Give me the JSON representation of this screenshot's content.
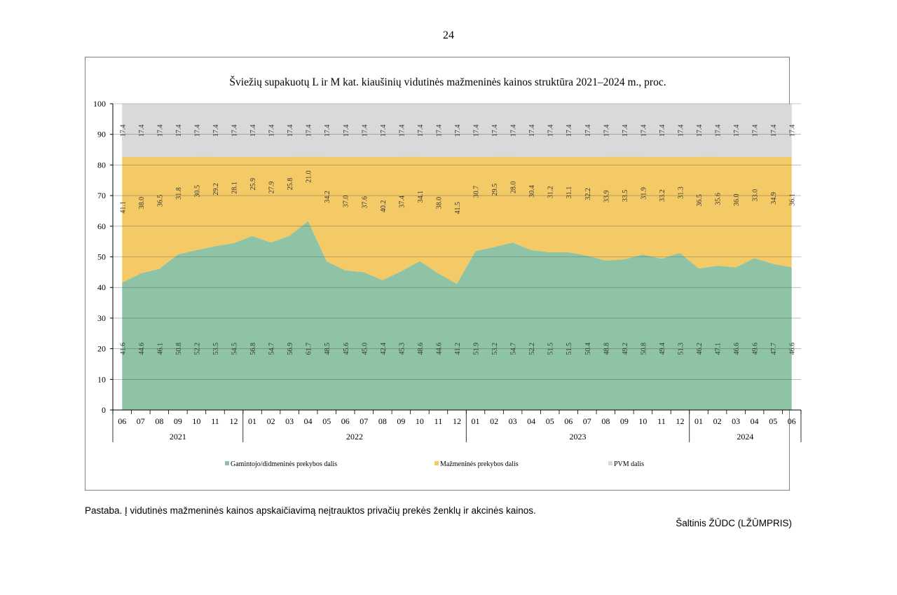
{
  "page_number": "24",
  "note": "Pastaba. Į vidutinės mažmeninės kainos apskaičiavimą neįtrauktos privačių prekės ženklų ir akcinės kainos.",
  "source": "Šaltinis ŽŪDC (LŽŪMPRIS)",
  "chart_data": {
    "type": "area",
    "stacked": true,
    "title": "Šviežių supakuotų L ir M kat. kiaušinių vidutinės mažmeninės kainos struktūra 2021–2024 m., proc.",
    "ylim": [
      0,
      100
    ],
    "y_ticks": [
      "0",
      "10",
      "20",
      "30",
      "40",
      "50",
      "60",
      "70",
      "80",
      "90",
      "100"
    ],
    "categories": [
      "06",
      "07",
      "08",
      "09",
      "10",
      "11",
      "12",
      "01",
      "02",
      "03",
      "04",
      "05",
      "06",
      "07",
      "08",
      "09",
      "10",
      "11",
      "12",
      "01",
      "02",
      "03",
      "04",
      "05",
      "06",
      "07",
      "08",
      "09",
      "10",
      "11",
      "12",
      "01",
      "02",
      "03",
      "04",
      "05",
      "06"
    ],
    "year_groups": [
      {
        "label": "2021",
        "start": 0,
        "end": 6
      },
      {
        "label": "2022",
        "start": 7,
        "end": 18
      },
      {
        "label": "2023",
        "start": 19,
        "end": 30
      },
      {
        "label": "2024",
        "start": 31,
        "end": 36
      }
    ],
    "series": [
      {
        "name": "Gamintojo/didmeninės prekybos dalis",
        "color": "#8fc3a6",
        "values": [
          41.6,
          44.6,
          46.1,
          50.8,
          52.2,
          53.5,
          54.5,
          56.8,
          54.7,
          56.9,
          61.7,
          48.5,
          45.6,
          45.0,
          42.4,
          45.3,
          48.6,
          44.6,
          41.2,
          51.9,
          53.2,
          54.7,
          52.2,
          51.5,
          51.5,
          50.4,
          48.8,
          49.2,
          50.8,
          49.4,
          51.3,
          46.2,
          47.1,
          46.6,
          49.6,
          47.7,
          46.6
        ],
        "labels": [
          "41.6",
          "44.6",
          "46.1",
          "50.8",
          "52.2",
          "53.5",
          "54.5",
          "56.8",
          "54.7",
          "56.9",
          "61.7",
          "48.5",
          "45.6",
          "45.0",
          "42.4",
          "45.3",
          "48.6",
          "44.6",
          "41.2",
          "51.9",
          "53.2",
          "54.7",
          "52.2",
          "51.5",
          "51.5",
          "50.4",
          "48.8",
          "49.2",
          "50.8",
          "49.4",
          "51.3",
          "46.2",
          "47.1",
          "46.6",
          "49.6",
          "47.7",
          "46.6"
        ]
      },
      {
        "name": "Mažmeninės prekybos dalis",
        "color": "#f4ca66",
        "values": [
          41.1,
          38.0,
          36.5,
          31.8,
          30.5,
          29.2,
          28.1,
          25.9,
          27.9,
          25.8,
          21.0,
          34.2,
          37.0,
          37.6,
          40.2,
          37.4,
          34.1,
          38.0,
          41.5,
          30.7,
          29.5,
          28.0,
          30.4,
          31.2,
          31.1,
          32.2,
          33.9,
          33.5,
          31.9,
          33.2,
          31.3,
          36.5,
          35.6,
          36.0,
          33.0,
          34.9,
          36.1
        ],
        "labels": [
          "41.1",
          "38.0",
          "36.5",
          "31.8",
          "30.5",
          "29.2",
          "28.1",
          "25.9",
          "27.9",
          "25.8",
          "21.0",
          "34.2",
          "37.0",
          "37.6",
          "40.2",
          "37.4",
          "34.1",
          "38.0",
          "41.5",
          "30.7",
          "29.5",
          "28.0",
          "30.4",
          "31.2",
          "31.1",
          "32.2",
          "33.9",
          "33.5",
          "31.9",
          "33.2",
          "31.3",
          "36.5",
          "35.6",
          "36.0",
          "33.0",
          "34.9",
          "36.1"
        ]
      },
      {
        "name": "PVM dalis",
        "color": "#d9d9d9",
        "values": [
          17.4,
          17.4,
          17.4,
          17.4,
          17.4,
          17.4,
          17.4,
          17.4,
          17.4,
          17.4,
          17.4,
          17.4,
          17.4,
          17.4,
          17.4,
          17.4,
          17.4,
          17.4,
          17.4,
          17.4,
          17.4,
          17.4,
          17.4,
          17.4,
          17.4,
          17.4,
          17.4,
          17.4,
          17.4,
          17.4,
          17.4,
          17.4,
          17.4,
          17.4,
          17.4,
          17.4,
          17.4
        ],
        "labels": [
          "17.4",
          "17.4",
          "17.4",
          "17.4",
          "17.4",
          "17.4",
          "17.4",
          "17.4",
          "17.4",
          "17.4",
          "17.4",
          "17.4",
          "17.4",
          "17.4",
          "17.4",
          "17.4",
          "17.4",
          "17.4",
          "17.4",
          "17.4",
          "17.4",
          "17.4",
          "17.4",
          "17.4",
          "17.4",
          "17.4",
          "17.4",
          "17.4",
          "17.4",
          "17.4",
          "17.4",
          "17.4",
          "17.4",
          "17.4",
          "17.4",
          "17.4",
          "17.4"
        ]
      }
    ],
    "legend": [
      "Gamintojo/didmeninės prekybos dalis",
      "Mažmeninės prekybos dalis",
      "PVM dalis"
    ],
    "legend_position": "bottom"
  }
}
